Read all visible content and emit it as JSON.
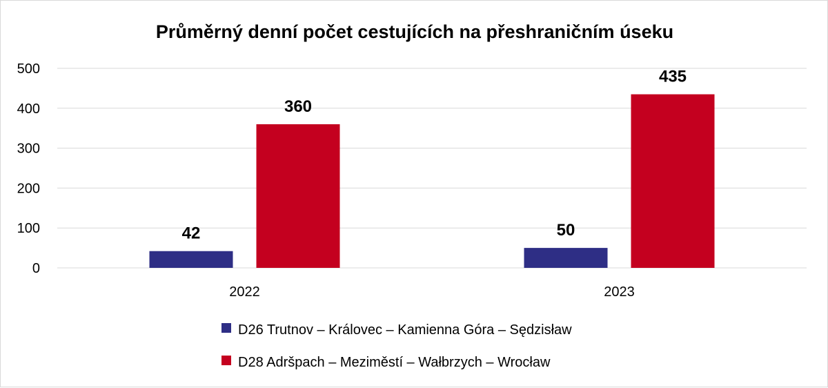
{
  "chart_data": {
    "type": "bar",
    "title": "Průměrný denní počet cestujících na přeshraničním úseku",
    "categories": [
      "2022",
      "2023"
    ],
    "series": [
      {
        "name": "D26 Trutnov – Královec – Kamienna Góra – Sędzisław",
        "color": "#2e2e85",
        "values": [
          42,
          50
        ]
      },
      {
        "name": "D28 Adršpach – Meziměstí – Wałbrzych – Wrocław",
        "color": "#c4001f",
        "values": [
          360,
          435
        ]
      }
    ],
    "ylim": [
      0,
      500
    ],
    "yticks": [
      0,
      100,
      200,
      300,
      400,
      500
    ],
    "grid": true,
    "legend_position": "bottom",
    "data_labels": true
  }
}
